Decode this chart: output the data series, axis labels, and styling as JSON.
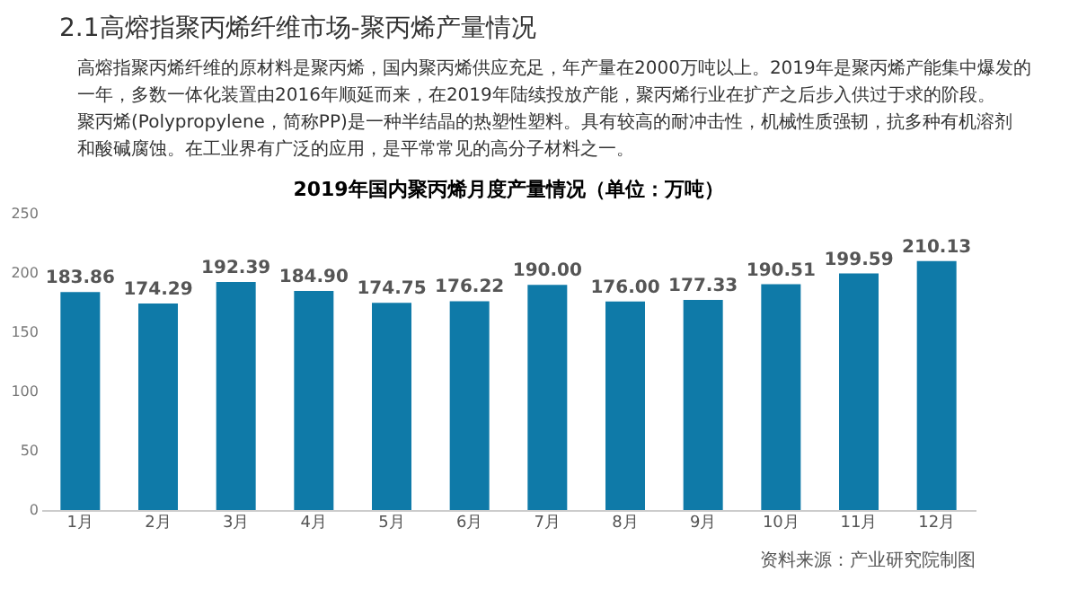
{
  "chart_data": {
    "type": "bar",
    "title": "2019年国内聚丙烯月度产量情况（单位：万吨）",
    "annotations": [
      "2.1高熔指聚丙烯纤维市场-聚丙烯产量情况",
      "　　高熔指聚丙烯纤维的原材料是聚丙烯，国内聚丙烯供应充足，年产量在2000万吨以上。2019年是聚丙烯产能集中爆发的一年，多数一体化装置由2016年顺延而来，在2019年陆续投放产能，聚丙烯行业在扩产之后步入供过于求的阶段。",
      "　　聚丙烯(Polypropylene，简称PP)是一种半结晶的热塑性塑料。具有较高的耐冲击性，机械性质强韧，抗多种有机溶剂和酸碱腐蚀。在工业界有广泛的应用，是平常常见的高分子材料之一。",
      "资料来源：产业研究院制图"
    ],
    "categories": [
      "1月",
      "2月",
      "3月",
      "4月",
      "5月",
      "6月",
      "7月",
      "8月",
      "9月",
      "10月",
      "11月",
      "12月"
    ],
    "values": [
      183.86,
      174.29,
      192.39,
      184.9,
      174.75,
      176.22,
      190.0,
      176.0,
      177.33,
      190.51,
      199.59,
      210.13
    ],
    "value_labels": [
      "183.86",
      "174.29",
      "192.39",
      "184.90",
      "174.75",
      "176.22",
      "190.00",
      "176.00",
      "177.33",
      "190.51",
      "199.59",
      "210.13"
    ],
    "color": "#0f7aa8",
    "ylim": [
      0,
      250
    ],
    "yticks": [
      0,
      50,
      100,
      150,
      200,
      250
    ],
    "grid": false
  }
}
